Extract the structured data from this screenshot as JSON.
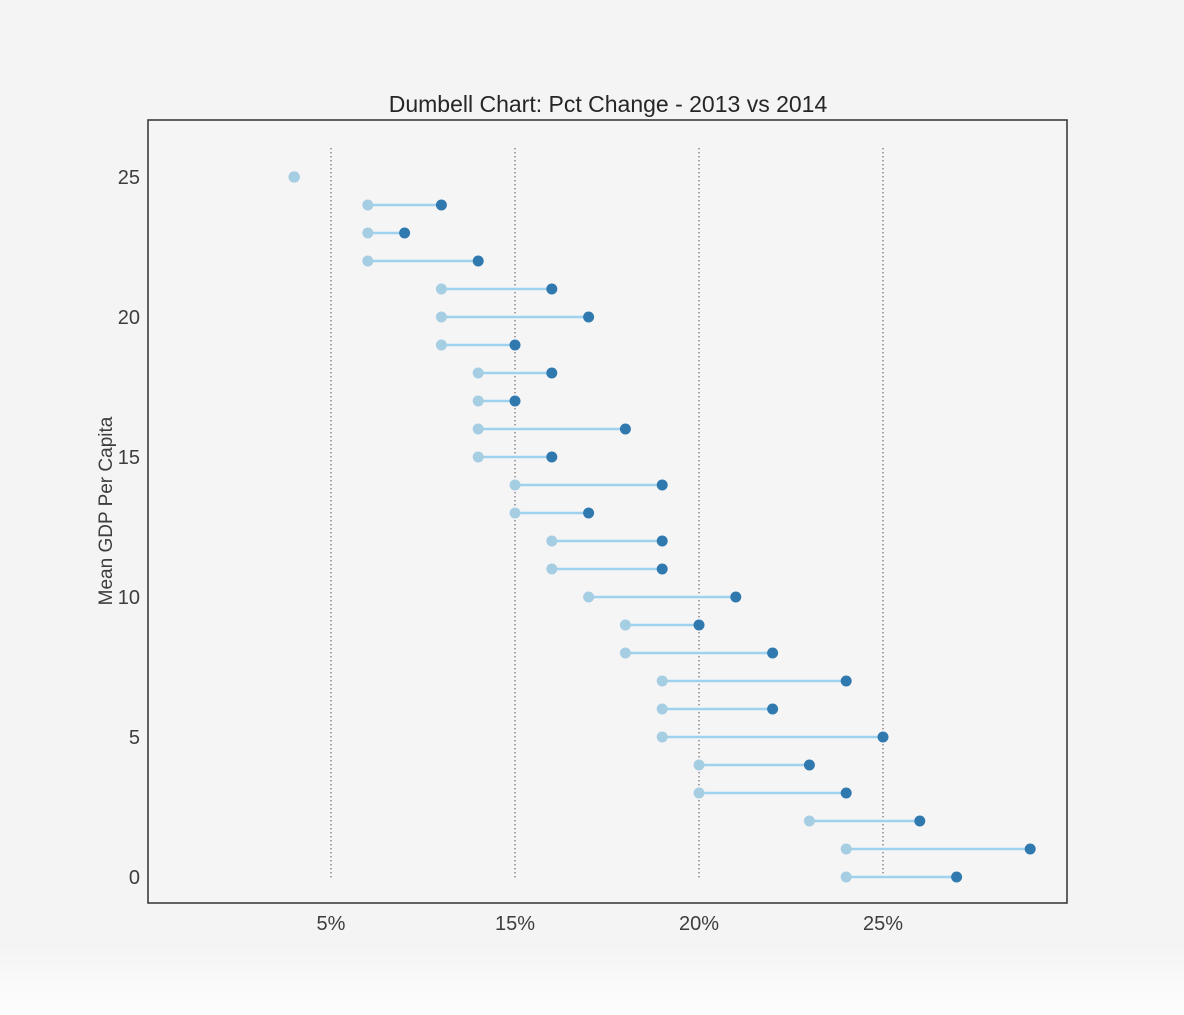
{
  "page": {
    "background_color": "#f5f4f5"
  },
  "chart": {
    "title": "Dumbell Chart: Pct Change - 2013 vs 2014",
    "ylabel": "Mean GDP Per Capita",
    "colors": {
      "dot_2013": "#a6cee3",
      "dot_2014": "#3079ae",
      "connector_line": "#9fd2ee",
      "spine": "#3c3c3c",
      "grid": "#3a3a3a",
      "text": "#3d3d3d",
      "plot_background": "#f6f5f6"
    }
  },
  "chart_data": {
    "type": "dumbbell",
    "title": "Dumbell Chart: Pct Change - 2013 vs 2014",
    "xlabel": "",
    "ylabel": "Mean GDP Per Capita",
    "x_tick_labels": [
      "5%",
      "15%",
      "20%",
      "25%"
    ],
    "x_tick_values": [
      5,
      15,
      20,
      25
    ],
    "y_tick_labels": [
      "0",
      "5",
      "10",
      "15",
      "20",
      "25"
    ],
    "y_tick_values": [
      0,
      5,
      10,
      15,
      20,
      25
    ],
    "y_index": [
      0,
      1,
      2,
      3,
      4,
      5,
      6,
      7,
      8,
      9,
      10,
      11,
      12,
      13,
      14,
      15,
      16,
      17,
      18,
      19,
      20,
      21,
      22,
      23,
      24,
      25
    ],
    "grid": "vertical dotted lines at x ticks",
    "legend_position": "none",
    "series": [
      {
        "name": "2013",
        "role": "start (light dots)",
        "values": [
          24,
          24,
          23,
          20,
          20,
          19,
          19,
          19,
          18,
          18,
          17,
          16,
          16,
          15,
          15,
          13,
          13,
          13,
          13,
          11,
          11,
          11,
          7,
          7,
          7,
          3
        ]
      },
      {
        "name": "2014",
        "role": "end (dark dots)",
        "values": [
          27,
          29,
          26,
          24,
          23,
          25,
          22,
          24,
          22,
          20,
          21,
          19,
          19,
          17,
          19,
          16,
          18,
          15,
          16,
          15,
          17,
          16,
          13,
          9,
          11,
          3
        ]
      }
    ],
    "note": "Pct change values in percent; y axis is row index 0-25 sorted by Mean GDP Per Capita"
  }
}
